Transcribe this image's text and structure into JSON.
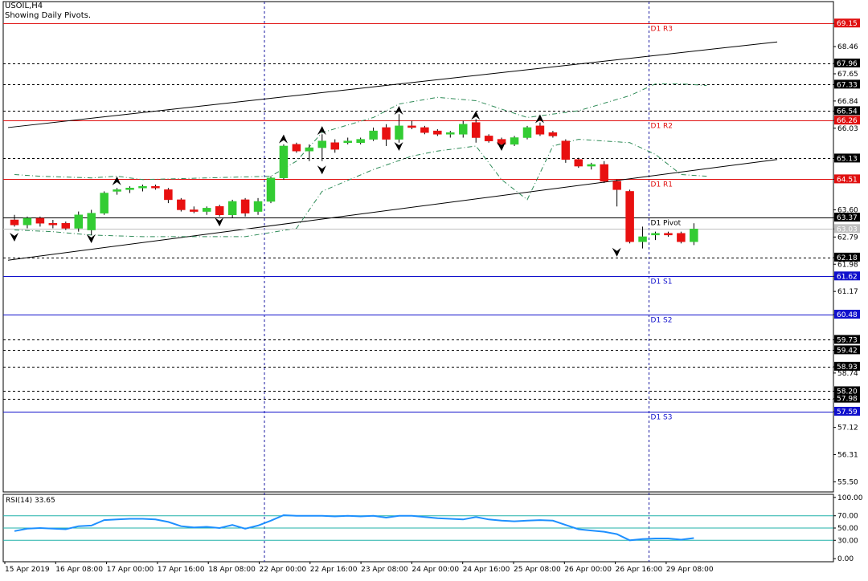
{
  "header": {
    "symbol": "USOIL,H4",
    "subtitle": "Showing Daily Pivots."
  },
  "colors": {
    "bull": "#33cc33",
    "bear": "#e81010",
    "pivot_resist": "#e01010",
    "pivot_support": "#1010cc",
    "grid": "#000000",
    "rsi_line": "#1e90ff",
    "rsi_level": "#20b2aa",
    "envelope": "#2e8b57",
    "price_badge_bg": "#000000",
    "current_price": "#c0c0c0"
  },
  "chart_data": [
    {
      "type": "candlestick",
      "title": "USOIL,H4",
      "subtitle": "Showing Daily Pivots.",
      "ylim": [
        55.2,
        69.8
      ],
      "y_ticks": [
        "69.15",
        "68.46",
        "67.96",
        "67.65",
        "67.33",
        "66.84",
        "66.54",
        "66.26",
        "66.03",
        "65.13",
        "64.51",
        "63.60",
        "63.37",
        "63.03",
        "62.79",
        "62.18",
        "61.98",
        "61.62",
        "61.17",
        "60.48",
        "59.73",
        "59.42",
        "58.93",
        "58.74",
        "58.20",
        "57.98",
        "57.59",
        "57.12",
        "56.31",
        "55.50"
      ],
      "x_ticks": [
        "15 Apr 2019",
        "16 Apr 08:00",
        "17 Apr 00:00",
        "17 Apr 16:00",
        "18 Apr 08:00",
        "22 Apr 00:00",
        "22 Apr 16:00",
        "23 Apr 08:00",
        "24 Apr 00:00",
        "24 Apr 16:00",
        "25 Apr 08:00",
        "26 Apr 00:00",
        "26 Apr 16:00",
        "29 Apr 08:00"
      ],
      "candles": [
        {
          "o": 63.3,
          "h": 63.45,
          "l": 63.1,
          "c": 63.15
        },
        {
          "o": 63.15,
          "h": 63.4,
          "l": 63.05,
          "c": 63.35
        },
        {
          "o": 63.35,
          "h": 63.4,
          "l": 63.1,
          "c": 63.2
        },
        {
          "o": 63.2,
          "h": 63.3,
          "l": 63.05,
          "c": 63.15
        },
        {
          "o": 63.2,
          "h": 63.25,
          "l": 63.0,
          "c": 63.05
        },
        {
          "o": 63.05,
          "h": 63.55,
          "l": 62.95,
          "c": 63.45
        },
        {
          "o": 63.0,
          "h": 63.6,
          "l": 62.85,
          "c": 63.5
        },
        {
          "o": 63.5,
          "h": 64.15,
          "l": 63.45,
          "c": 64.1
        },
        {
          "o": 64.15,
          "h": 64.25,
          "l": 64.05,
          "c": 64.2
        },
        {
          "o": 64.2,
          "h": 64.3,
          "l": 64.1,
          "c": 64.25
        },
        {
          "o": 64.25,
          "h": 64.35,
          "l": 64.15,
          "c": 64.3
        },
        {
          "o": 64.3,
          "h": 64.35,
          "l": 64.2,
          "c": 64.25
        },
        {
          "o": 64.2,
          "h": 64.25,
          "l": 63.8,
          "c": 63.9
        },
        {
          "o": 63.9,
          "h": 63.95,
          "l": 63.55,
          "c": 63.6
        },
        {
          "o": 63.6,
          "h": 63.7,
          "l": 63.5,
          "c": 63.55
        },
        {
          "o": 63.55,
          "h": 63.7,
          "l": 63.45,
          "c": 63.65
        },
        {
          "o": 63.7,
          "h": 63.75,
          "l": 63.4,
          "c": 63.45
        },
        {
          "o": 63.45,
          "h": 63.9,
          "l": 63.35,
          "c": 63.85
        },
        {
          "o": 63.9,
          "h": 63.95,
          "l": 63.4,
          "c": 63.5
        },
        {
          "o": 63.55,
          "h": 63.95,
          "l": 63.45,
          "c": 63.85
        },
        {
          "o": 63.85,
          "h": 64.6,
          "l": 63.8,
          "c": 64.55
        },
        {
          "o": 64.55,
          "h": 65.55,
          "l": 64.5,
          "c": 65.5
        },
        {
          "o": 65.55,
          "h": 65.6,
          "l": 65.3,
          "c": 65.35
        },
        {
          "o": 65.35,
          "h": 65.55,
          "l": 65.05,
          "c": 65.45
        },
        {
          "o": 65.45,
          "h": 65.85,
          "l": 65.05,
          "c": 65.65
        },
        {
          "o": 65.6,
          "h": 65.7,
          "l": 65.3,
          "c": 65.4
        },
        {
          "o": 65.6,
          "h": 65.75,
          "l": 65.55,
          "c": 65.65
        },
        {
          "o": 65.6,
          "h": 65.75,
          "l": 65.55,
          "c": 65.7
        },
        {
          "o": 65.7,
          "h": 66.05,
          "l": 65.65,
          "c": 65.95
        },
        {
          "o": 66.05,
          "h": 66.15,
          "l": 65.5,
          "c": 65.7
        },
        {
          "o": 65.7,
          "h": 66.45,
          "l": 65.6,
          "c": 66.1
        },
        {
          "o": 66.1,
          "h": 66.25,
          "l": 66.0,
          "c": 66.05
        },
        {
          "o": 66.05,
          "h": 66.1,
          "l": 65.85,
          "c": 65.9
        },
        {
          "o": 65.95,
          "h": 66.0,
          "l": 65.8,
          "c": 65.85
        },
        {
          "o": 65.85,
          "h": 65.95,
          "l": 65.75,
          "c": 65.9
        },
        {
          "o": 65.85,
          "h": 66.25,
          "l": 65.75,
          "c": 66.15
        },
        {
          "o": 66.2,
          "h": 66.3,
          "l": 65.6,
          "c": 65.75
        },
        {
          "o": 65.8,
          "h": 65.85,
          "l": 65.6,
          "c": 65.65
        },
        {
          "o": 65.7,
          "h": 65.75,
          "l": 65.4,
          "c": 65.55
        },
        {
          "o": 65.55,
          "h": 65.8,
          "l": 65.5,
          "c": 65.75
        },
        {
          "o": 65.75,
          "h": 66.1,
          "l": 65.7,
          "c": 66.05
        },
        {
          "o": 66.1,
          "h": 66.2,
          "l": 65.8,
          "c": 65.85
        },
        {
          "o": 65.9,
          "h": 65.95,
          "l": 65.75,
          "c": 65.8
        },
        {
          "o": 65.65,
          "h": 65.7,
          "l": 65.0,
          "c": 65.1
        },
        {
          "o": 65.1,
          "h": 65.15,
          "l": 64.85,
          "c": 64.9
        },
        {
          "o": 64.9,
          "h": 65.0,
          "l": 64.8,
          "c": 64.95
        },
        {
          "o": 64.95,
          "h": 65.05,
          "l": 64.4,
          "c": 64.45
        },
        {
          "o": 64.45,
          "h": 64.5,
          "l": 63.7,
          "c": 64.2
        },
        {
          "o": 64.15,
          "h": 64.2,
          "l": 62.6,
          "c": 62.65
        },
        {
          "o": 62.65,
          "h": 63.1,
          "l": 62.45,
          "c": 62.8
        },
        {
          "o": 62.85,
          "h": 62.95,
          "l": 62.7,
          "c": 62.9
        },
        {
          "o": 62.9,
          "h": 62.95,
          "l": 62.8,
          "c": 62.85
        },
        {
          "o": 62.9,
          "h": 62.95,
          "l": 62.6,
          "c": 62.65
        },
        {
          "o": 62.65,
          "h": 63.2,
          "l": 62.55,
          "c": 63.03
        }
      ],
      "pivots": [
        {
          "label": "D1 R3",
          "value": 69.15,
          "kind": "resist"
        },
        {
          "label": "D1 R2",
          "value": 66.26,
          "kind": "resist"
        },
        {
          "label": "D1 R1",
          "value": 64.51,
          "kind": "resist"
        },
        {
          "label": "D1 Pivot",
          "value": 63.37,
          "kind": "pivot"
        },
        {
          "label": "D1 S1",
          "value": 61.62,
          "kind": "support"
        },
        {
          "label": "D1 S2",
          "value": 60.48,
          "kind": "support"
        },
        {
          "label": "D1 S3",
          "value": 57.59,
          "kind": "support"
        }
      ],
      "dashed_levels": [
        67.96,
        67.33,
        66.54,
        65.13,
        62.18,
        59.73,
        59.42,
        58.93,
        58.2,
        57.98
      ],
      "price_badges": [
        {
          "value": 69.15,
          "label": "69.15",
          "kind": "resist"
        },
        {
          "value": 67.96,
          "label": "67.96",
          "kind": "black"
        },
        {
          "value": 67.33,
          "label": "67.33",
          "kind": "black"
        },
        {
          "value": 66.54,
          "label": "66.54",
          "kind": "black"
        },
        {
          "value": 66.26,
          "label": "66.26",
          "kind": "resist"
        },
        {
          "value": 65.13,
          "label": "65.13",
          "kind": "black"
        },
        {
          "value": 64.51,
          "label": "64.51",
          "kind": "resist"
        },
        {
          "value": 63.37,
          "label": "63.37",
          "kind": "black"
        },
        {
          "value": 63.03,
          "label": "63.03",
          "kind": "current"
        },
        {
          "value": 62.18,
          "label": "62.18",
          "kind": "black"
        },
        {
          "value": 61.62,
          "label": "61.62",
          "kind": "support"
        },
        {
          "value": 60.48,
          "label": "60.48",
          "kind": "support"
        },
        {
          "value": 59.73,
          "label": "59.73",
          "kind": "black"
        },
        {
          "value": 59.42,
          "label": "59.42",
          "kind": "black"
        },
        {
          "value": 58.93,
          "label": "58.93",
          "kind": "black"
        },
        {
          "value": 58.2,
          "label": "58.20",
          "kind": "black"
        },
        {
          "value": 57.98,
          "label": "57.98",
          "kind": "black"
        },
        {
          "value": 57.59,
          "label": "57.59",
          "kind": "support"
        }
      ],
      "trend_lines": [
        {
          "from": [
            -0.5,
            66.05
          ],
          "to": [
            59.5,
            68.6
          ]
        },
        {
          "from": [
            -0.5,
            62.1
          ],
          "to": [
            59.5,
            65.1
          ]
        }
      ],
      "envelope_upper": [
        [
          0,
          64.65
        ],
        [
          2,
          64.6
        ],
        [
          6,
          64.55
        ],
        [
          8,
          64.6
        ],
        [
          10,
          64.5
        ],
        [
          15,
          64.55
        ],
        [
          20,
          64.6
        ],
        [
          22,
          65.05
        ],
        [
          24,
          65.9
        ],
        [
          28,
          66.35
        ],
        [
          30,
          66.75
        ],
        [
          33,
          66.95
        ],
        [
          36,
          66.85
        ],
        [
          40,
          66.35
        ],
        [
          44,
          66.55
        ],
        [
          48,
          67.0
        ],
        [
          50,
          67.35
        ],
        [
          52,
          67.35
        ],
        [
          54,
          67.3
        ]
      ],
      "envelope_lower": [
        [
          0,
          63.0
        ],
        [
          3,
          62.95
        ],
        [
          6,
          62.85
        ],
        [
          10,
          62.8
        ],
        [
          14,
          62.8
        ],
        [
          18,
          62.8
        ],
        [
          22,
          63.05
        ],
        [
          24,
          64.15
        ],
        [
          28,
          64.8
        ],
        [
          31,
          65.2
        ],
        [
          33,
          65.35
        ],
        [
          36,
          65.5
        ],
        [
          38,
          64.5
        ],
        [
          40,
          63.9
        ],
        [
          42,
          65.5
        ],
        [
          44,
          65.7
        ],
        [
          48,
          65.6
        ],
        [
          50,
          65.25
        ],
        [
          52,
          64.65
        ],
        [
          54,
          64.6
        ]
      ],
      "fractals_up": [
        [
          8,
          64.45
        ],
        [
          21,
          65.7
        ],
        [
          24,
          65.95
        ],
        [
          30,
          66.55
        ],
        [
          36,
          66.4
        ],
        [
          41,
          66.3
        ]
      ],
      "fractals_down": [
        [
          0,
          62.8
        ],
        [
          6,
          62.75
        ],
        [
          16,
          63.25
        ],
        [
          24,
          64.8
        ],
        [
          30,
          65.5
        ],
        [
          38,
          65.5
        ],
        [
          47,
          62.35
        ]
      ],
      "vertical_markers": [
        19.5,
        49.5
      ]
    },
    {
      "type": "line",
      "title": "RSI(14) 33.65",
      "ylim": [
        -5,
        105
      ],
      "y_ticks": [
        "100.00",
        "70.00",
        "50.00",
        "30.00",
        "0.00"
      ],
      "levels": [
        70,
        50,
        30
      ],
      "x": [
        0,
        1,
        2,
        3,
        4,
        5,
        6,
        7,
        8,
        9,
        10,
        11,
        12,
        13,
        14,
        15,
        16,
        17,
        18,
        19,
        20,
        21,
        22,
        23,
        24,
        25,
        26,
        27,
        28,
        29,
        30,
        31,
        32,
        33,
        34,
        35,
        36,
        37,
        38,
        39,
        40,
        41,
        42,
        43,
        44,
        45,
        46,
        47,
        48,
        49,
        50,
        51,
        52,
        53
      ],
      "values": [
        45,
        49,
        50,
        49,
        48,
        53,
        54,
        63,
        64,
        65,
        65,
        64,
        60,
        53,
        51,
        52,
        50,
        55,
        49,
        54,
        62,
        71,
        70,
        70,
        70,
        69,
        70,
        69,
        70,
        67,
        70,
        70,
        68,
        66,
        65,
        64,
        68,
        64,
        62,
        61,
        62,
        63,
        62,
        55,
        48,
        46,
        44,
        40,
        30,
        32,
        33,
        33,
        31,
        33.65
      ]
    }
  ]
}
